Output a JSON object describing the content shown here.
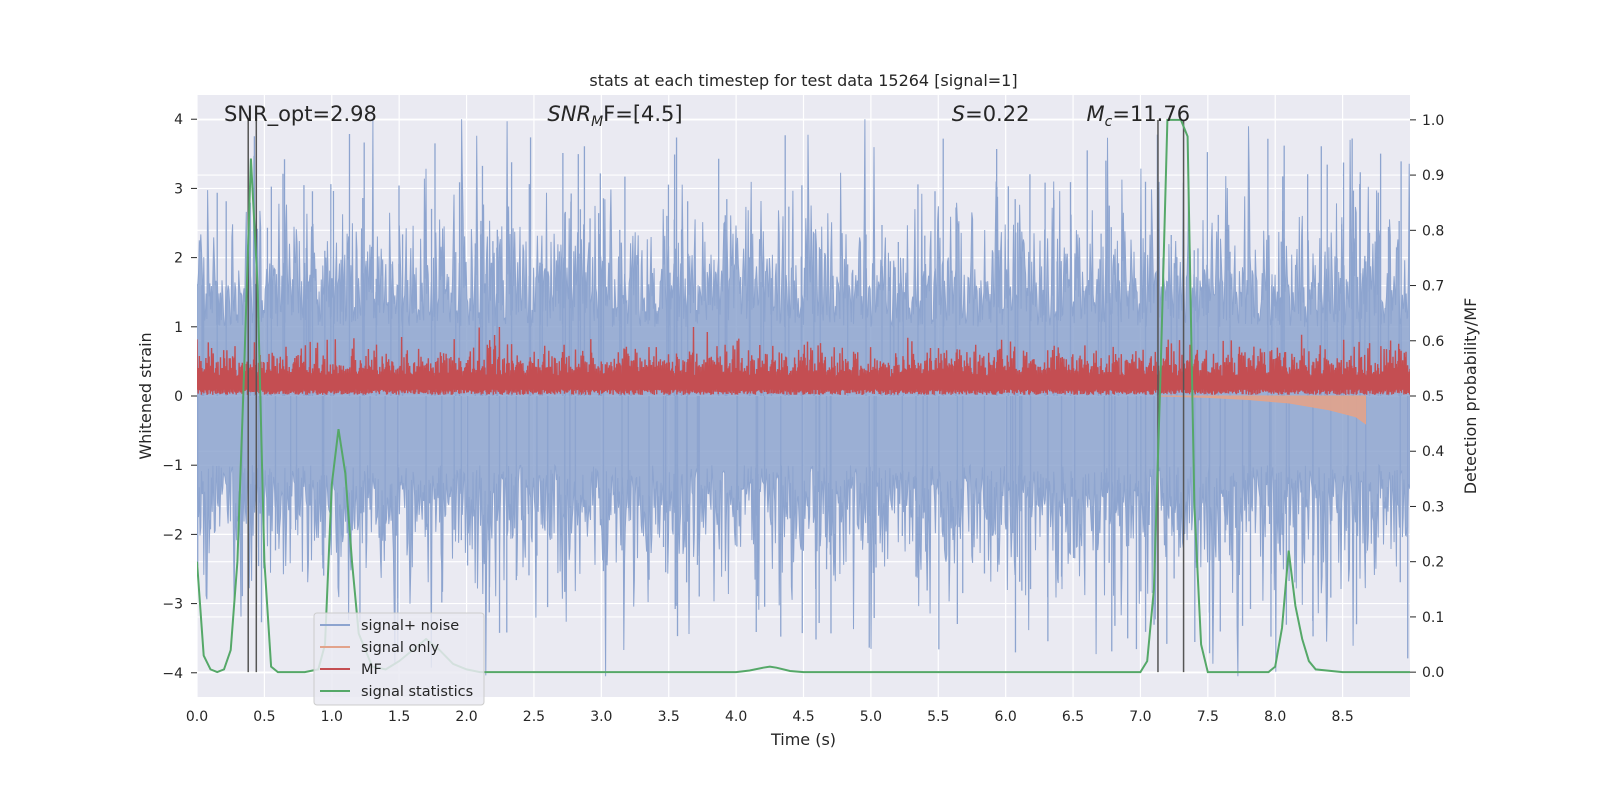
{
  "chart_data": {
    "type": "line",
    "title": "stats at each timestep for test data 15264 [signal=1]",
    "xlabel": "Time (s)",
    "ylabel_left": "Whitened strain",
    "ylabel_right": "Detection probability/MF",
    "xlim": [
      0.0,
      9.0
    ],
    "ylim_left": [
      -4.35,
      4.35
    ],
    "ylim_right": [
      -0.045,
      1.045
    ],
    "x_ticks": [
      "0.0",
      "0.5",
      "1.0",
      "1.5",
      "2.0",
      "2.5",
      "3.0",
      "3.5",
      "4.0",
      "4.5",
      "5.0",
      "5.5",
      "6.0",
      "6.5",
      "7.0",
      "7.5",
      "8.0",
      "8.5"
    ],
    "y_left_ticks": [
      "−4",
      "−3",
      "−2",
      "−1",
      "0",
      "1",
      "2",
      "3",
      "4"
    ],
    "y_right_ticks": [
      "0.0",
      "0.1",
      "0.2",
      "0.3",
      "0.4",
      "0.5",
      "0.6",
      "0.7",
      "0.8",
      "0.9",
      "1.0"
    ],
    "grid": true,
    "legend_position": "lower-left",
    "annotations": [
      {
        "text": "SNR_opt=2.98",
        "x": 0.2
      },
      {
        "text": "F=[4.5]",
        "x": 2.6,
        "math_base": "SNR",
        "math_sub": "M"
      },
      {
        "text": "=0.22",
        "x": 5.6,
        "math_base": "S"
      },
      {
        "text": "=11.76",
        "x": 6.6,
        "math_base": "M",
        "math_sub": "c"
      }
    ],
    "vertical_lines": [
      0.38,
      0.44,
      7.13,
      7.32
    ],
    "series": [
      {
        "name": "signal+ noise",
        "axis": "left",
        "color": "#8da4cf",
        "description_values": "whitened strain noise, band approx ±1.6 with spikes to ±4, time 0 to 9 s"
      },
      {
        "name": "signal only",
        "axis": "left",
        "color": "#e2a38b",
        "x": [
          7.13,
          7.5,
          7.8,
          8.1,
          8.4,
          8.6,
          8.67
        ],
        "y": [
          0.0,
          -0.02,
          -0.05,
          -0.1,
          -0.2,
          -0.3,
          -0.4
        ]
      },
      {
        "name": "MF",
        "axis": "right",
        "color": "#c44e52",
        "description_values": "matched-filter output fluctuating between about 0.50 and 0.62 (right axis)"
      },
      {
        "name": "signal statistics",
        "axis": "right",
        "color": "#55a868",
        "x": [
          0.0,
          0.05,
          0.1,
          0.15,
          0.2,
          0.25,
          0.3,
          0.35,
          0.4,
          0.45,
          0.5,
          0.55,
          0.6,
          0.7,
          0.8,
          0.9,
          0.95,
          1.0,
          1.05,
          1.1,
          1.15,
          1.2,
          1.3,
          1.4,
          1.5,
          1.6,
          1.7,
          1.8,
          1.9,
          2.0,
          2.1,
          2.2,
          2.5,
          3.0,
          3.5,
          4.0,
          4.1,
          4.2,
          4.25,
          4.3,
          4.4,
          4.5,
          5.0,
          5.5,
          6.0,
          6.5,
          7.0,
          7.05,
          7.1,
          7.15,
          7.2,
          7.3,
          7.35,
          7.4,
          7.45,
          7.5,
          7.8,
          7.95,
          8.0,
          8.05,
          8.1,
          8.15,
          8.2,
          8.25,
          8.3,
          8.5,
          9.0
        ],
        "y": [
          0.2,
          0.03,
          0.005,
          0.0,
          0.005,
          0.04,
          0.2,
          0.55,
          0.93,
          0.7,
          0.2,
          0.01,
          0.0,
          0.0,
          0.0,
          0.005,
          0.05,
          0.34,
          0.44,
          0.36,
          0.2,
          0.07,
          0.01,
          0.005,
          0.02,
          0.04,
          0.06,
          0.04,
          0.015,
          0.005,
          0.0,
          0.0,
          0.0,
          0.0,
          0.0,
          0.0,
          0.003,
          0.008,
          0.01,
          0.008,
          0.002,
          0.0,
          0.0,
          0.0,
          0.0,
          0.0,
          0.0,
          0.02,
          0.15,
          0.55,
          1.0,
          1.0,
          0.97,
          0.3,
          0.05,
          0.0,
          0.0,
          0.0,
          0.01,
          0.08,
          0.22,
          0.12,
          0.06,
          0.02,
          0.005,
          0.0,
          0.0
        ]
      }
    ]
  }
}
